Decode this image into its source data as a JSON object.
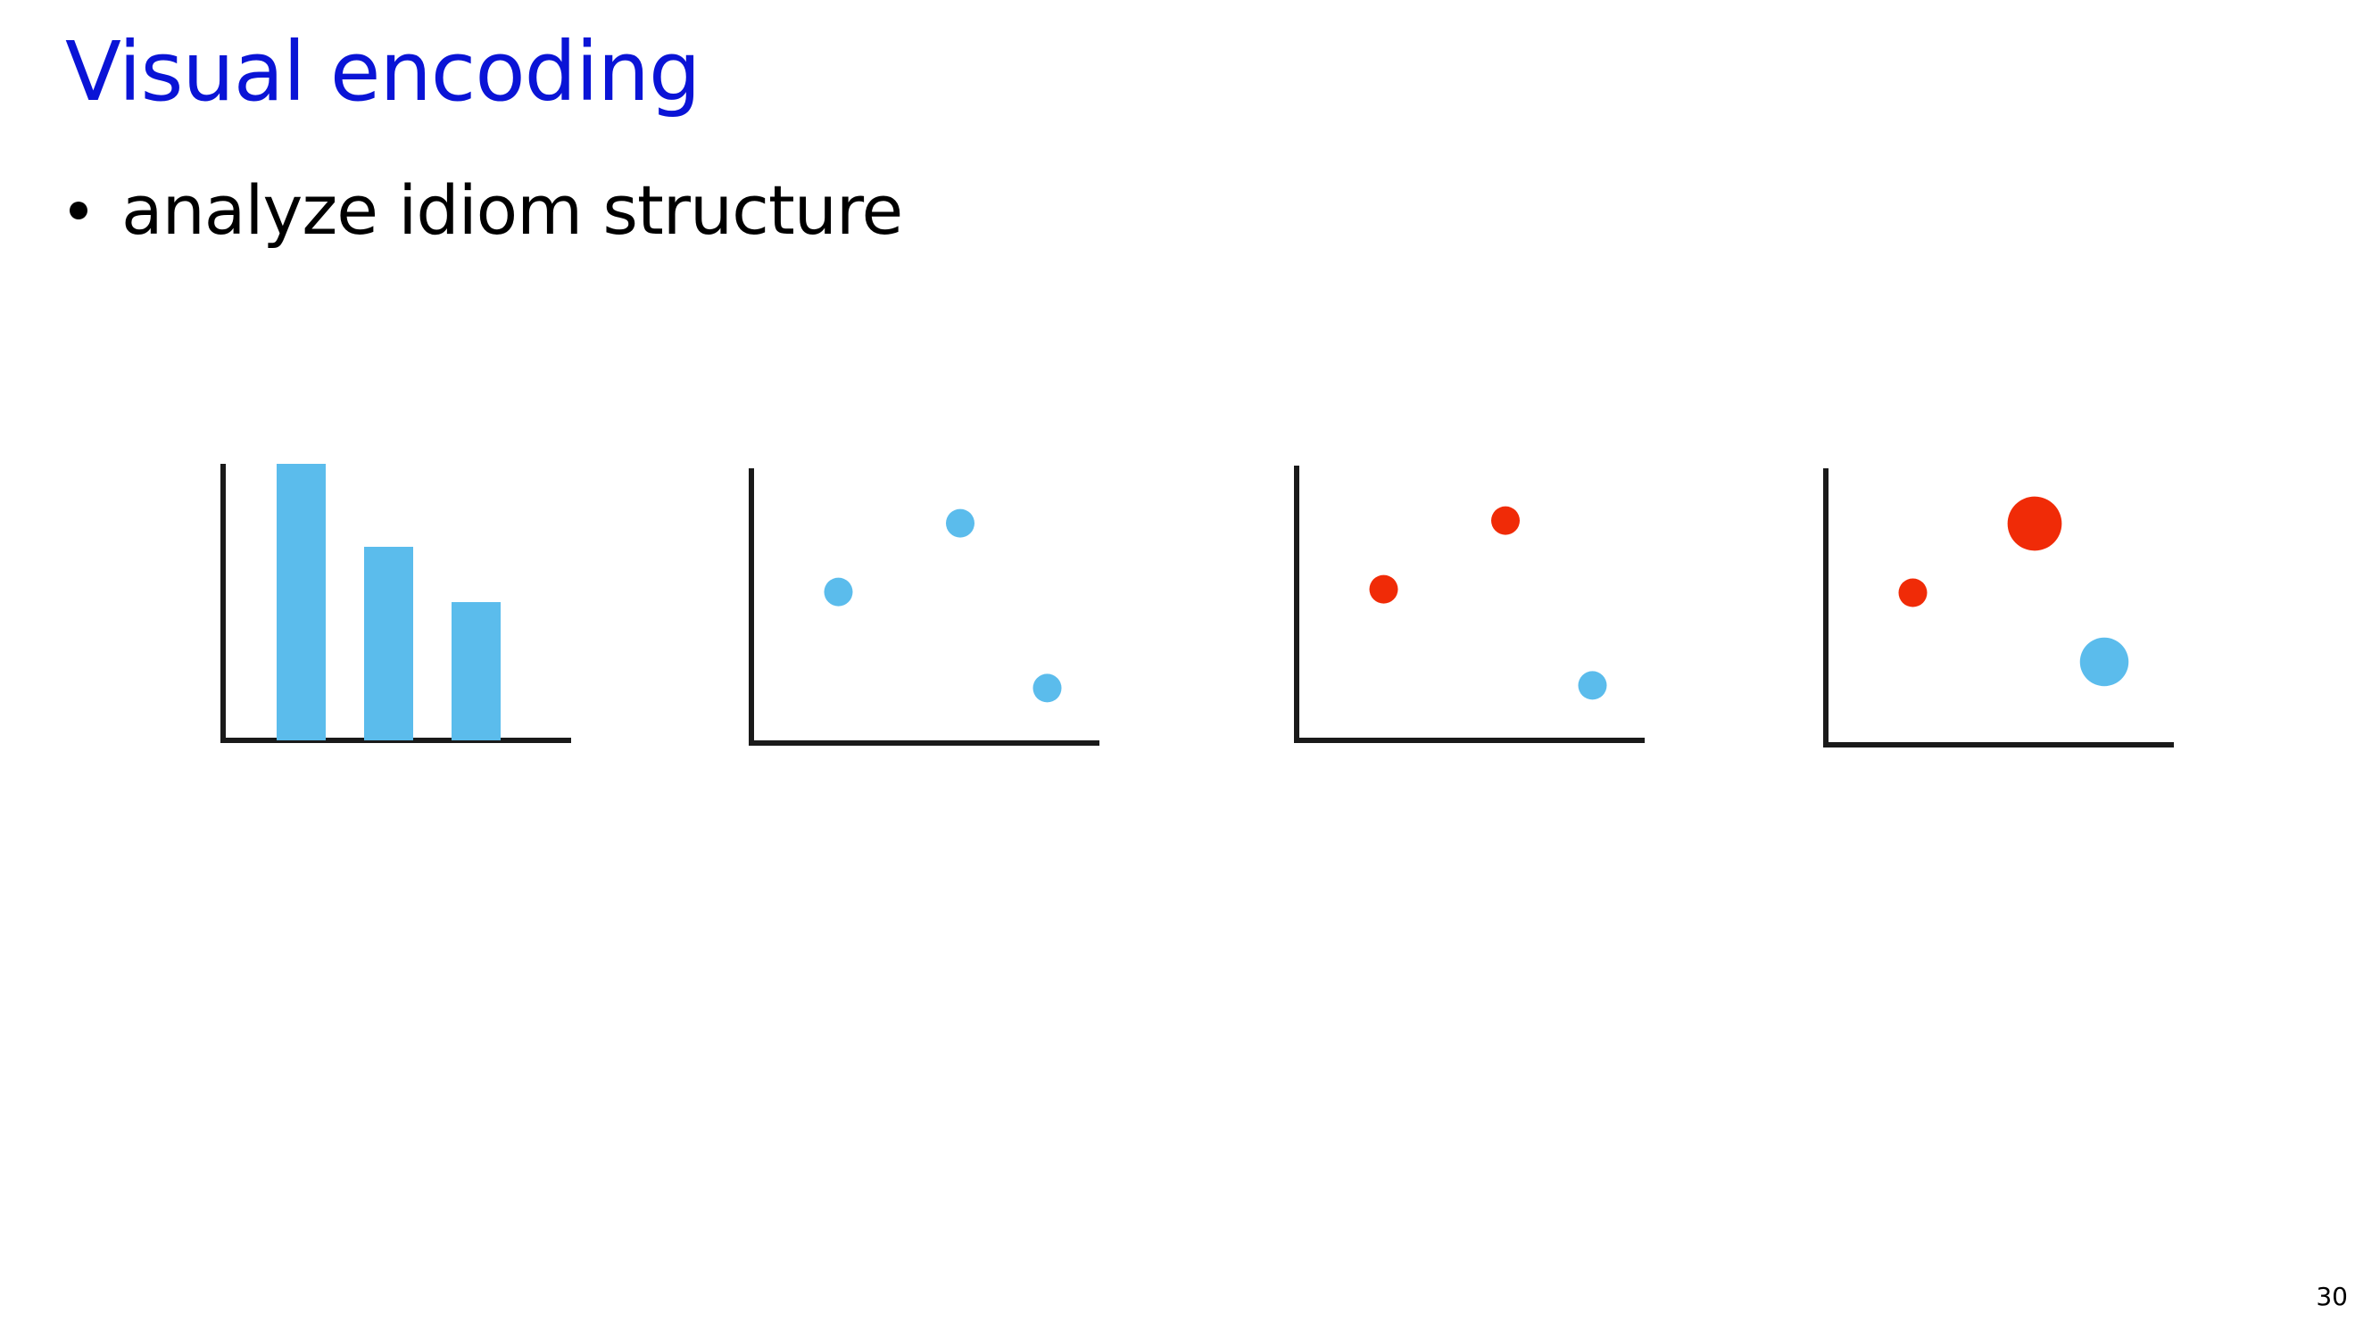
{
  "slide": {
    "title": "Visual encoding",
    "title_color": "#0a14d6",
    "bullets": [
      "analyze idiom structure"
    ],
    "page_number": "30"
  },
  "colors": {
    "blue": "#5bbcec",
    "red": "#f02b07",
    "axis": "#1a1a1a"
  },
  "chart_data": [
    {
      "type": "bar",
      "categories": [
        "",
        "",
        ""
      ],
      "values": [
        1.0,
        0.7,
        0.5
      ],
      "ylim": [
        0,
        1
      ],
      "color": "blue"
    },
    {
      "type": "scatter",
      "points": [
        {
          "x": 0.25,
          "y": 0.55,
          "color": "blue",
          "size": 1
        },
        {
          "x": 0.6,
          "y": 0.8,
          "color": "blue",
          "size": 1
        },
        {
          "x": 0.85,
          "y": 0.2,
          "color": "blue",
          "size": 1
        }
      ],
      "xlim": [
        0,
        1
      ],
      "ylim": [
        0,
        1
      ]
    },
    {
      "type": "scatter",
      "points": [
        {
          "x": 0.25,
          "y": 0.55,
          "color": "red",
          "size": 1
        },
        {
          "x": 0.6,
          "y": 0.8,
          "color": "red",
          "size": 1
        },
        {
          "x": 0.85,
          "y": 0.2,
          "color": "blue",
          "size": 1
        }
      ],
      "xlim": [
        0,
        1
      ],
      "ylim": [
        0,
        1
      ]
    },
    {
      "type": "scatter",
      "points": [
        {
          "x": 0.25,
          "y": 0.55,
          "color": "red",
          "size": 1
        },
        {
          "x": 0.6,
          "y": 0.8,
          "color": "red",
          "size": 3.6
        },
        {
          "x": 0.8,
          "y": 0.3,
          "color": "blue",
          "size": 2.9
        }
      ],
      "xlim": [
        0,
        1
      ],
      "ylim": [
        0,
        1
      ]
    }
  ]
}
